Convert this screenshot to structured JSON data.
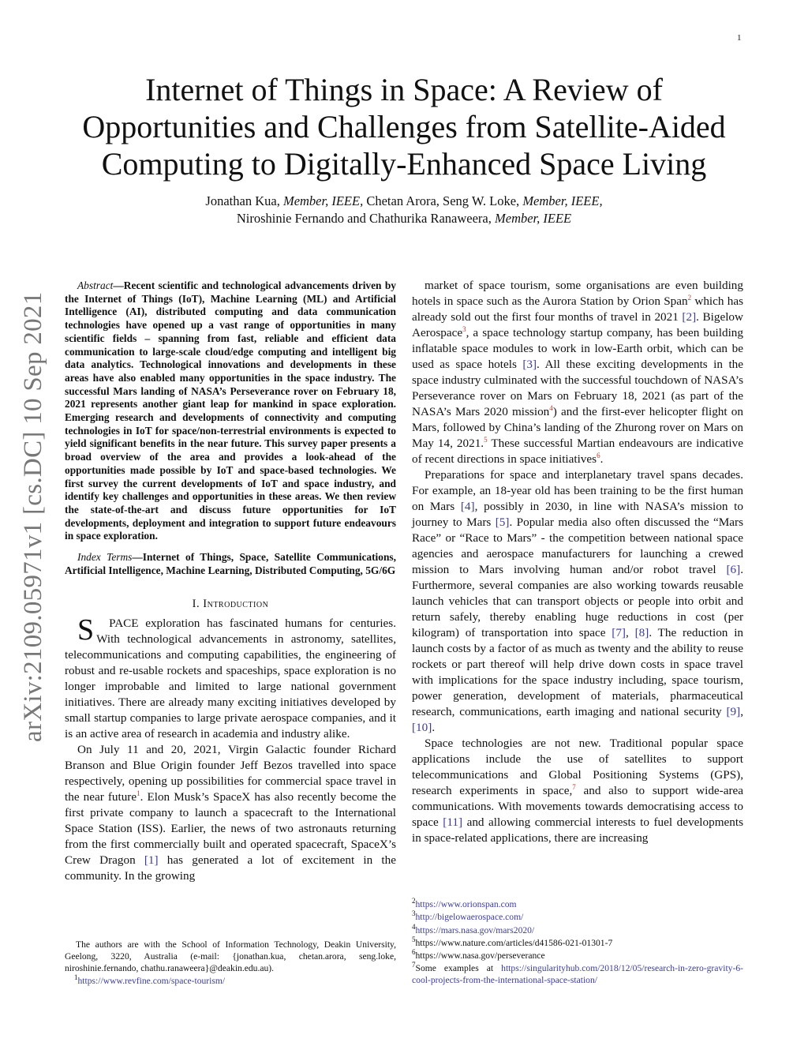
{
  "page_number": "1",
  "arxiv_stamp": "arXiv:2109.05971v1  [cs.DC]  10 Sep 2021",
  "title_lines": [
    "Internet of Things in Space: A Review of",
    "Opportunities and Challenges from Satellite-Aided",
    "Computing to Digitally-Enhanced Space Living"
  ],
  "authors": {
    "line1": [
      {
        "t": "Jonathan Kua, "
      },
      {
        "t": "Member, IEEE,",
        "i": true
      },
      {
        "t": " Chetan Arora, Seng W. Loke, "
      },
      {
        "t": "Member, IEEE,",
        "i": true
      }
    ],
    "line2": [
      {
        "t": "Niroshinie Fernando and Chathurika Ranaweera, "
      },
      {
        "t": "Member, IEEE",
        "i": true
      }
    ]
  },
  "abstract": {
    "label": "Abstract",
    "text": "—Recent scientific and technological advancements driven by the Internet of Things (IoT), Machine Learning (ML) and Artificial Intelligence (AI), distributed computing and data communication technologies have opened up a vast range of opportunities in many scientific fields – spanning from fast, reliable and efficient data communication to large-scale cloud/edge computing and intelligent big data analytics. Technological innovations and developments in these areas have also enabled many opportunities in the space industry. The successful Mars landing of NASA’s Perseverance rover on February 18, 2021 represents another giant leap for mankind in space exploration. Emerging research and developments of connectivity and computing technologies in IoT for space/non-terrestrial environments is expected to yield significant benefits in the near future. This survey paper presents a broad overview of the area and provides a look-ahead of the opportunities made possible by IoT and space-based technologies. We first survey the current developments of IoT and space industry, and identify key challenges and opportunities in these areas. We then review the state-of-the-art and discuss future opportunities for IoT developments, deployment and integration to support future endeavours in space exploration."
  },
  "index_terms": {
    "label": "Index Terms",
    "text": "—Internet of Things, Space, Satellite Communications, Artificial Intelligence, Machine Learning, Distributed Computing, 5G/6G"
  },
  "section": {
    "number": "I. ",
    "title": "Introduction"
  },
  "left_paragraphs": [
    [
      {
        "t": "S",
        "type": "dropcap"
      },
      {
        "t": "PACE exploration has fascinated humans for centuries. With technological advancements in astronomy, satellites, telecommunications and computing capabilities, the engineering of robust and re-usable rockets and spaceships, space exploration is no longer improbable and limited to large national government initiatives. There are already many exciting initiatives developed by small startup companies to large private aerospace companies, and it is an active area of research in academia and industry alike."
      }
    ],
    [
      {
        "t": "On July 11 and 20, 2021, Virgin Galactic founder Richard Branson and Blue Origin founder Jeff Bezos travelled into space respectively, opening up possibilities for commercial space travel in the near future"
      },
      {
        "t": "1",
        "type": "sup"
      },
      {
        "t": ". Elon Musk’s SpaceX has also recently become the first private company to launch a spacecraft to the International Space Station (ISS). Earlier, the news of two astronauts returning from the first commercially built and operated spacecraft, SpaceX’s Crew Dragon "
      },
      {
        "t": "[1]",
        "type": "cite"
      },
      {
        "t": " has generated a lot of excitement in the community. In the growing"
      }
    ]
  ],
  "right_paragraphs": [
    [
      {
        "t": "market of space tourism, some organisations are even building hotels in space such as the Aurora Station by Orion Span"
      },
      {
        "t": "2",
        "type": "sup"
      },
      {
        "t": " which has already sold out the first four months of travel in 2021 "
      },
      {
        "t": "[2]",
        "type": "cite"
      },
      {
        "t": ". Bigelow Aerospace"
      },
      {
        "t": "3",
        "type": "sup"
      },
      {
        "t": ", a space technology startup company, has been building inflatable space modules to work in low-Earth orbit, which can be used as space hotels "
      },
      {
        "t": "[3]",
        "type": "cite"
      },
      {
        "t": ". All these exciting developments in the space industry culminated with the successful touchdown of NASA’s Perseverance rover on Mars on February 18, 2021 (as part of the NASA’s Mars 2020 mission"
      },
      {
        "t": "4",
        "type": "sup"
      },
      {
        "t": ") and the first-ever helicopter flight on Mars, followed by China’s landing of the Zhurong rover on Mars on May 14, 2021."
      },
      {
        "t": "5",
        "type": "sup"
      },
      {
        "t": " These successful Martian endeavours are indicative of recent directions in space initiatives"
      },
      {
        "t": "6",
        "type": "sup"
      },
      {
        "t": "."
      }
    ],
    [
      {
        "t": "Preparations for space and interplanetary travel spans decades. For example, an 18-year old has been training to be the first human on Mars "
      },
      {
        "t": "[4]",
        "type": "cite"
      },
      {
        "t": ", possibly in 2030, in line with NASA’s mission to journey to Mars "
      },
      {
        "t": "[5]",
        "type": "cite"
      },
      {
        "t": ". Popular media also often discussed the “Mars Race” or “Race to Mars” - the competition between national space agencies and aerospace manufacturers for launching a crewed mission to Mars involving human and/or robot travel "
      },
      {
        "t": "[6]",
        "type": "cite"
      },
      {
        "t": ". Furthermore, several companies are also working towards reusable launch vehicles that can transport objects or people into orbit and return safely, thereby enabling huge reductions in cost (per kilogram) of transportation into space "
      },
      {
        "t": "[7]",
        "type": "cite"
      },
      {
        "t": ", "
      },
      {
        "t": "[8]",
        "type": "cite"
      },
      {
        "t": ". The reduction in launch costs by a factor of as much as twenty and the ability to reuse rockets or part thereof will help drive down costs in space travel with implications for the space industry including, space tourism, power generation, development of materials, pharmaceutical research, communications, earth imaging and national security "
      },
      {
        "t": "[9]",
        "type": "cite"
      },
      {
        "t": ", "
      },
      {
        "t": "[10]",
        "type": "cite"
      },
      {
        "t": "."
      }
    ],
    [
      {
        "t": "Space technologies are not new. Traditional popular space applications include the use of satellites to support telecommunications and Global Positioning Systems (GPS), research experiments in space,"
      },
      {
        "t": "7",
        "type": "sup"
      },
      {
        "t": " and also to support wide-area communications. With movements towards democratising access to space "
      },
      {
        "t": "[11]",
        "type": "cite"
      },
      {
        "t": " and allowing commercial interests to fuel developments in space-related applications, there are increasing"
      }
    ]
  ],
  "footnotes_left": {
    "affiliation": "The authors are with the School of Information Technology, Deakin University, Geelong, 3220, Australia (e-mail: {jonathan.kua, chetan.arora, seng.loke, niroshinie.fernando, chathu.ranaweera}@deakin.edu.au).",
    "notes": [
      {
        "mark": "1",
        "text": "https://www.revfine.com/space-tourism/",
        "link": true
      }
    ]
  },
  "footnotes_right": [
    {
      "mark": "2",
      "text": "https://www.orionspan.com",
      "link": true
    },
    {
      "mark": "3",
      "text": "http://bigelowaerospace.com/",
      "link": true
    },
    {
      "mark": "4",
      "text": "https://mars.nasa.gov/mars2020/",
      "link": true
    },
    {
      "mark": "5",
      "text": "https://www.nature.com/articles/d41586-021-01301-7",
      "link": false
    },
    {
      "mark": "6",
      "text": "https://www.nasa.gov/perseverance",
      "link": false
    },
    {
      "mark": "7",
      "prefix": "Some examples at ",
      "text": "https://singularityhub.com/2018/12/05/research-in-zero-gravity-6-cool-projects-from-the-international-space-station/",
      "link": true
    }
  ],
  "colors": {
    "link": "#3b3b9a",
    "footnote_mark": "#c0392b",
    "stamp": "#777777"
  }
}
